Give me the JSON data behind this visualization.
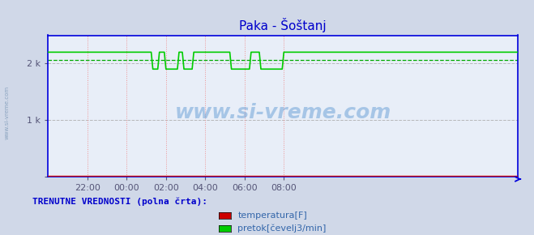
{
  "title": "Paka - Šoštanj",
  "title_color": "#0000cc",
  "bg_color": "#d0d8e8",
  "plot_bg_color": "#e8eef8",
  "grid_color_h": "#aaaaaa",
  "grid_color_v": "#ee8888",
  "axis_color": "#0000dd",
  "ylim": [
    0,
    2500
  ],
  "xtick_labels": [
    "22:00",
    "00:00",
    "02:00",
    "04:00",
    "06:00",
    "08:00"
  ],
  "watermark_text": "www.si-vreme.com",
  "watermark_color": "#4488cc",
  "watermark_alpha": 0.4,
  "legend_title": "TRENUTNE VREDNOSTI (polna črta):",
  "legend_title_color": "#0000cc",
  "legend_items": [
    "temperatura[F]",
    "pretok[čevelj3/min]"
  ],
  "legend_colors": [
    "#cc0000",
    "#00cc00"
  ],
  "temp_color": "#cc0000",
  "flow_color": "#00cc00",
  "avg_color": "#00aa00",
  "flow_high": 2200,
  "flow_low": 1900,
  "flow_avg": 2060,
  "n_points": 288
}
